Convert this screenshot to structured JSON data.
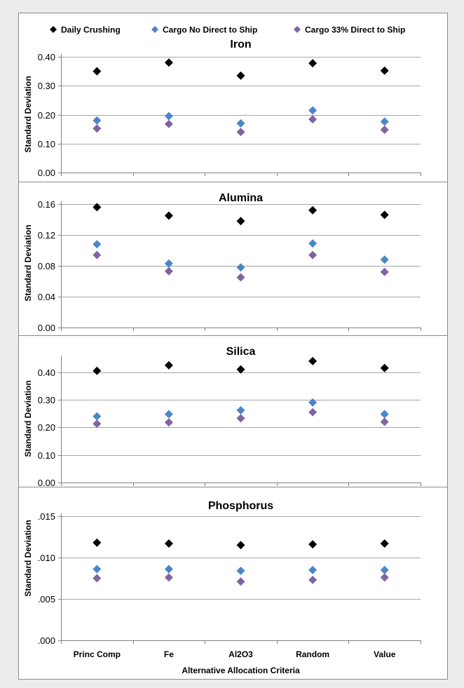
{
  "legend": [
    {
      "name": "Daily Crushing",
      "color": "#000000"
    },
    {
      "name": "Cargo No Direct to Ship",
      "color": "#4a86c8"
    },
    {
      "name": "Cargo 33% Direct to Ship",
      "color": "#8064a2"
    }
  ],
  "chart_data": [
    {
      "type": "scatter",
      "title": "Iron",
      "ylabel": "Standard Deviation",
      "ylim": [
        0,
        0.4
      ],
      "yticks": [
        "0.00",
        "0.10",
        "0.20",
        "0.30",
        "0.40"
      ],
      "categories": [
        "Princ Comp",
        "Fe",
        "Al2O3",
        "Random",
        "Value"
      ],
      "series": [
        {
          "name": "Daily Crushing",
          "values": [
            0.35,
            0.38,
            0.335,
            0.378,
            0.352
          ]
        },
        {
          "name": "Cargo No Direct to Ship",
          "values": [
            0.18,
            0.195,
            0.17,
            0.215,
            0.176
          ]
        },
        {
          "name": "Cargo 33% Direct to Ship",
          "values": [
            0.152,
            0.168,
            0.14,
            0.184,
            0.148
          ]
        }
      ]
    },
    {
      "type": "scatter",
      "title": "Alumina",
      "ylabel": "Standard Deviation",
      "ylim": [
        0,
        0.16
      ],
      "yticks": [
        "0.00",
        "0.04",
        "0.08",
        "0.12",
        "0.16"
      ],
      "categories": [
        "Princ Comp",
        "Fe",
        "Al2O3",
        "Random",
        "Value"
      ],
      "series": [
        {
          "name": "Daily Crushing",
          "values": [
            0.156,
            0.145,
            0.138,
            0.152,
            0.146
          ]
        },
        {
          "name": "Cargo No Direct to Ship",
          "values": [
            0.108,
            0.083,
            0.078,
            0.109,
            0.088
          ]
        },
        {
          "name": "Cargo 33% Direct to Ship",
          "values": [
            0.094,
            0.073,
            0.065,
            0.094,
            0.072
          ]
        }
      ]
    },
    {
      "type": "scatter",
      "title": "Silica",
      "ylabel": "Standard Deviation",
      "ylim": [
        0,
        0.45
      ],
      "yticks": [
        "0.00",
        "0.10",
        "0.20",
        "0.30",
        "0.40"
      ],
      "categories": [
        "Princ Comp",
        "Fe",
        "Al2O3",
        "Random",
        "Value"
      ],
      "series": [
        {
          "name": "Daily Crushing",
          "values": [
            0.405,
            0.425,
            0.41,
            0.44,
            0.415
          ]
        },
        {
          "name": "Cargo No Direct to Ship",
          "values": [
            0.24,
            0.248,
            0.262,
            0.29,
            0.248
          ]
        },
        {
          "name": "Cargo 33% Direct to Ship",
          "values": [
            0.213,
            0.218,
            0.233,
            0.255,
            0.22
          ]
        }
      ]
    },
    {
      "type": "scatter",
      "title": "Phosphorus",
      "ylabel": "Standard Deviation",
      "xlabel": "Alternative Allocation Criteria",
      "ylim": [
        0,
        0.015
      ],
      "yticks": [
        ".000",
        ".005",
        ".010",
        ".015"
      ],
      "categories": [
        "Princ Comp",
        "Fe",
        "Al2O3",
        "Random",
        "Value"
      ],
      "series": [
        {
          "name": "Daily Crushing",
          "values": [
            0.0118,
            0.0117,
            0.0115,
            0.0116,
            0.0117
          ]
        },
        {
          "name": "Cargo No Direct to Ship",
          "values": [
            0.0086,
            0.0086,
            0.0084,
            0.0085,
            0.0085
          ]
        },
        {
          "name": "Cargo 33% Direct to Ship",
          "values": [
            0.0075,
            0.0076,
            0.0071,
            0.0073,
            0.0076
          ]
        }
      ]
    }
  ]
}
